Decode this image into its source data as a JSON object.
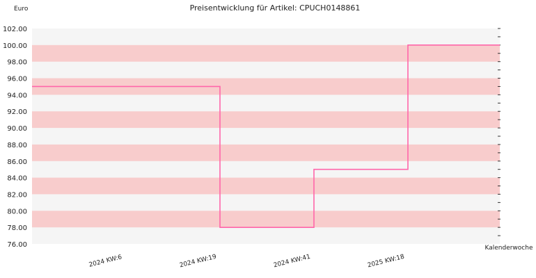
{
  "chart_data": {
    "type": "line",
    "step": true,
    "title": "Preisentwicklung für Artikel: CPUCH0148861",
    "ylabel": "Euro",
    "xlabel": "Kalenderwoche",
    "ylim": [
      76,
      102
    ],
    "ytick_step": 2,
    "yticks": [
      "76.00",
      "78.00",
      "80.00",
      "82.00",
      "84.00",
      "86.00",
      "88.00",
      "90.00",
      "92.00",
      "94.00",
      "96.00",
      "98.00",
      "100.00",
      "102.00"
    ],
    "x_tick_labels": [
      "2024 KW:6",
      "2024 KW:19",
      "2024 KW:41",
      "2025 KW:18"
    ],
    "series": [
      {
        "x": [
          "2024 KW:6",
          "2024 KW:19",
          "2024 KW:41",
          "2025 KW:18"
        ],
        "values": [
          95,
          78,
          85,
          100
        ]
      }
    ],
    "colors": {
      "line": "#ff66aa",
      "band_alt": "#f8cccc",
      "band_base": "#f5f5f5"
    },
    "grid": true
  }
}
